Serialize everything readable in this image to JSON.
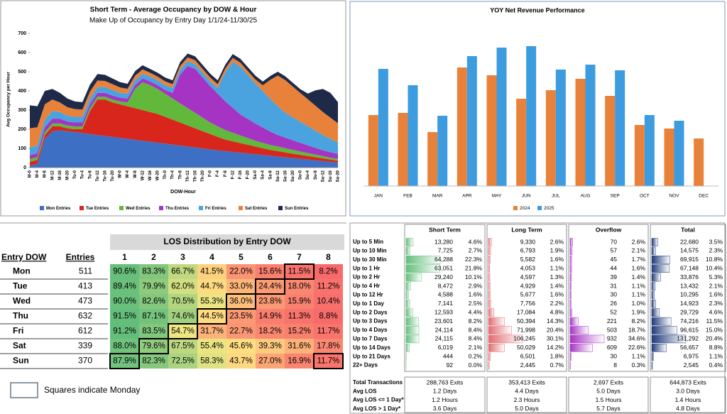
{
  "chart_data": [
    {
      "type": "area",
      "stacked": true,
      "title": "Short Term - Average Occupancy by DOW & Hour",
      "subtitle": "Make Up of Occupancy by Entry Day 1/1/24-11/30/25",
      "y_label": "Avg Occupancy per Hour",
      "x_label": "DOW-Hour",
      "categories": [
        "M-0",
        "M-4",
        "M-8",
        "M-12",
        "M-16",
        "M-20",
        "Tu-0",
        "Tu-4",
        "Tu-8",
        "Tu-12",
        "Tu-16",
        "Tu-20",
        "W-0",
        "W-4",
        "W-8",
        "W-12",
        "W-16",
        "W-20",
        "Th-0",
        "Th-4",
        "Th-8",
        "Th-12",
        "Th-16",
        "Th-20",
        "F-0",
        "F-4",
        "F-8",
        "F-12",
        "F-16",
        "F-20",
        "Sa-0",
        "Sa-4",
        "Sa-8",
        "Sa-12",
        "Sa-16",
        "Sa-20",
        "Su-0",
        "Su-4",
        "Su-8",
        "Su-12",
        "Su-16",
        "Su-20"
      ],
      "series": [
        {
          "name": "Mon Entries",
          "color": "#3d6fc4",
          "values": [
            10,
            20,
            150,
            190,
            195,
            190,
            185,
            180,
            175,
            170,
            165,
            160,
            155,
            150,
            145,
            140,
            135,
            130,
            125,
            120,
            115,
            110,
            105,
            100,
            95,
            90,
            86,
            82,
            78,
            74,
            70,
            66,
            62,
            58,
            54,
            50,
            46,
            42,
            38,
            34,
            30,
            26
          ]
        },
        {
          "name": "Tue Entries",
          "color": "#d9261c",
          "values": [
            20,
            20,
            20,
            25,
            20,
            15,
            15,
            20,
            120,
            185,
            190,
            180,
            175,
            170,
            165,
            160,
            155,
            150,
            140,
            130,
            120,
            110,
            100,
            90,
            80,
            70,
            60,
            55,
            50,
            45,
            40,
            35,
            30,
            28,
            25,
            22,
            20,
            18,
            16,
            14,
            12,
            10
          ]
        },
        {
          "name": "Wed Entries",
          "color": "#62b83a",
          "values": [
            15,
            15,
            15,
            15,
            15,
            15,
            15,
            15,
            15,
            15,
            15,
            15,
            15,
            20,
            100,
            145,
            140,
            130,
            120,
            110,
            100,
            90,
            80,
            70,
            60,
            55,
            50,
            45,
            40,
            35,
            30,
            28,
            26,
            24,
            22,
            20,
            18,
            16,
            14,
            12,
            10,
            10
          ]
        },
        {
          "name": "Thu Entries",
          "color": "#a534c4",
          "values": [
            20,
            20,
            25,
            25,
            25,
            20,
            20,
            20,
            20,
            20,
            20,
            20,
            20,
            20,
            20,
            20,
            20,
            20,
            20,
            30,
            150,
            220,
            230,
            210,
            190,
            170,
            150,
            130,
            110,
            100,
            90,
            80,
            70,
            60,
            55,
            50,
            45,
            40,
            35,
            30,
            28,
            25
          ]
        },
        {
          "name": "Fri Entries",
          "color": "#4aa3df",
          "values": [
            40,
            40,
            40,
            40,
            35,
            30,
            30,
            30,
            30,
            30,
            30,
            30,
            25,
            25,
            25,
            25,
            25,
            25,
            25,
            25,
            25,
            25,
            25,
            25,
            25,
            30,
            150,
            240,
            250,
            230,
            210,
            190,
            170,
            150,
            130,
            120,
            110,
            100,
            90,
            80,
            70,
            60
          ]
        },
        {
          "name": "Sat Entries",
          "color": "#e8823a",
          "values": [
            100,
            95,
            80,
            60,
            50,
            45,
            40,
            38,
            36,
            34,
            32,
            30,
            28,
            26,
            24,
            22,
            20,
            20,
            20,
            20,
            20,
            20,
            20,
            20,
            20,
            20,
            20,
            20,
            20,
            20,
            20,
            30,
            100,
            160,
            170,
            160,
            150,
            140,
            130,
            120,
            110,
            100
          ]
        },
        {
          "name": "Sun Entries",
          "color": "#1e2a48",
          "values": [
            120,
            110,
            70,
            55,
            50,
            45,
            40,
            38,
            36,
            34,
            32,
            30,
            28,
            26,
            24,
            22,
            20,
            20,
            20,
            20,
            20,
            20,
            20,
            20,
            20,
            20,
            20,
            20,
            20,
            20,
            20,
            20,
            20,
            20,
            20,
            20,
            20,
            30,
            80,
            120,
            130,
            110
          ]
        }
      ],
      "ylim": [
        0,
        700
      ],
      "yticks": [
        0,
        100,
        200,
        300,
        400,
        500,
        600,
        700
      ],
      "grid": false,
      "legend": "bottom"
    },
    {
      "type": "bar",
      "title": "YOY Net Revenue Performance",
      "categories": [
        "JAN",
        "FEB",
        "MAR",
        "APR",
        "MAY",
        "JUN",
        "JUL",
        "AUG",
        "SEP",
        "OCT",
        "NOV",
        "DEC"
      ],
      "series": [
        {
          "name": "2024",
          "color": "#e8823a",
          "values": [
            100,
            103,
            76,
            167,
            156,
            123,
            135,
            151,
            127,
            86,
            81,
            67
          ]
        },
        {
          "name": "2025",
          "color": "#3d9be0",
          "values": [
            165,
            142,
            99,
            183,
            195,
            197,
            164,
            171,
            163,
            100,
            92,
            null
          ]
        }
      ],
      "ylim": [
        0,
        200
      ],
      "grid": false,
      "legend": "bottom"
    }
  ],
  "los_table": {
    "title": "LOS Distribution by Entry DOW",
    "columns": [
      "Entry DOW",
      "Entries",
      "1",
      "2",
      "3",
      "4",
      "5",
      "6",
      "7",
      "8"
    ],
    "rows": [
      {
        "day": "Mon",
        "entries": "511",
        "cells": [
          "90.6%",
          "83.3%",
          "66.7%",
          "41.5%",
          "22.0%",
          "15.6%",
          "11.5%",
          "8.2%"
        ]
      },
      {
        "day": "Tue",
        "entries": "413",
        "cells": [
          "89.4%",
          "79.9%",
          "62.0%",
          "44.7%",
          "33.0%",
          "24.4%",
          "18.0%",
          "11.2%"
        ]
      },
      {
        "day": "Wed",
        "entries": "473",
        "cells": [
          "90.0%",
          "82.6%",
          "70.5%",
          "55.3%",
          "36.0%",
          "23.8%",
          "15.9%",
          "10.4%"
        ]
      },
      {
        "day": "Thu",
        "entries": "632",
        "cells": [
          "91.5%",
          "87.1%",
          "74.6%",
          "44.5%",
          "23.5%",
          "14.9%",
          "11.3%",
          "8.8%"
        ]
      },
      {
        "day": "Fri",
        "entries": "612",
        "cells": [
          "91.2%",
          "83.5%",
          "54.7%",
          "31.7%",
          "22.7%",
          "18.2%",
          "15.2%",
          "11.7%"
        ]
      },
      {
        "day": "Sat",
        "entries": "339",
        "cells": [
          "88.0%",
          "79.6%",
          "67.5%",
          "55.4%",
          "45.6%",
          "39.3%",
          "31.6%",
          "17.8%"
        ]
      },
      {
        "day": "Sun",
        "entries": "370",
        "cells": [
          "87.9%",
          "82.3%",
          "72.5%",
          "58.3%",
          "43.7%",
          "27.0%",
          "16.9%",
          "11.7%"
        ]
      }
    ],
    "note": "Squares indicate Monday"
  },
  "exit_table": {
    "groups": [
      {
        "name": "Short Term",
        "color": "#63be7b"
      },
      {
        "name": "Long Term",
        "color": "#e06b70"
      },
      {
        "name": "Overflow",
        "color": "#a534c4"
      },
      {
        "name": "Total",
        "color": "#1f3a7a"
      }
    ],
    "rows": [
      {
        "label": "Up to 5 Min",
        "cells": [
          {
            "count": "13,280",
            "pct": "4.6%"
          },
          {
            "count": "9,330",
            "pct": "2.6%"
          },
          {
            "count": "70",
            "pct": "2.6%"
          },
          {
            "count": "22,680",
            "pct": "3.5%"
          }
        ]
      },
      {
        "label": "Up to 10 Min",
        "cells": [
          {
            "count": "7,725",
            "pct": "2.7%"
          },
          {
            "count": "6,793",
            "pct": "1.9%"
          },
          {
            "count": "57",
            "pct": "2.1%"
          },
          {
            "count": "14,575",
            "pct": "2.3%"
          }
        ]
      },
      {
        "label": "Up to 30 Min",
        "cells": [
          {
            "count": "64,288",
            "pct": "22.3%"
          },
          {
            "count": "5,582",
            "pct": "1.6%"
          },
          {
            "count": "45",
            "pct": "1.7%"
          },
          {
            "count": "69,915",
            "pct": "10.8%"
          }
        ]
      },
      {
        "label": "Up to 1 Hr",
        "cells": [
          {
            "count": "63,051",
            "pct": "21.8%"
          },
          {
            "count": "4,053",
            "pct": "1.1%"
          },
          {
            "count": "44",
            "pct": "1.6%"
          },
          {
            "count": "67,148",
            "pct": "10.4%"
          }
        ]
      },
      {
        "label": "Up to 2 Hr",
        "cells": [
          {
            "count": "29,240",
            "pct": "10.1%"
          },
          {
            "count": "4,597",
            "pct": "1.3%"
          },
          {
            "count": "39",
            "pct": "1.4%"
          },
          {
            "count": "33,876",
            "pct": "5.3%"
          }
        ]
      },
      {
        "label": "Up to 4 Hr",
        "cells": [
          {
            "count": "8,472",
            "pct": "2.9%"
          },
          {
            "count": "4,929",
            "pct": "1.4%"
          },
          {
            "count": "31",
            "pct": "1.1%"
          },
          {
            "count": "13,432",
            "pct": "2.1%"
          }
        ]
      },
      {
        "label": "Up to 12 Hr",
        "cells": [
          {
            "count": "4,588",
            "pct": "1.6%"
          },
          {
            "count": "5,677",
            "pct": "1.6%"
          },
          {
            "count": "30",
            "pct": "1.1%"
          },
          {
            "count": "10,295",
            "pct": "1.6%"
          }
        ]
      },
      {
        "label": "Up to 1 Day",
        "cells": [
          {
            "count": "7,141",
            "pct": "2.5%"
          },
          {
            "count": "7,756",
            "pct": "2.2%"
          },
          {
            "count": "26",
            "pct": "1.0%"
          },
          {
            "count": "14,923",
            "pct": "2.3%"
          }
        ]
      },
      {
        "label": "Up to 2 Days",
        "cells": [
          {
            "count": "12,593",
            "pct": "4.4%"
          },
          {
            "count": "17,084",
            "pct": "4.8%"
          },
          {
            "count": "52",
            "pct": "1.9%"
          },
          {
            "count": "29,729",
            "pct": "4.6%"
          }
        ]
      },
      {
        "label": "Up to 3 Days",
        "cells": [
          {
            "count": "23,601",
            "pct": "8.2%"
          },
          {
            "count": "50,394",
            "pct": "14.3%"
          },
          {
            "count": "221",
            "pct": "8.2%"
          },
          {
            "count": "74,216",
            "pct": "11.5%"
          }
        ]
      },
      {
        "label": "Up to 4 Days",
        "cells": [
          {
            "count": "24,114",
            "pct": "8.4%"
          },
          {
            "count": "71,998",
            "pct": "20.4%"
          },
          {
            "count": "503",
            "pct": "18.7%"
          },
          {
            "count": "96,615",
            "pct": "15.0%"
          }
        ]
      },
      {
        "label": "Up to 7 Days",
        "cells": [
          {
            "count": "24,115",
            "pct": "8.4%"
          },
          {
            "count": "106,245",
            "pct": "30.1%"
          },
          {
            "count": "932",
            "pct": "34.6%"
          },
          {
            "count": "131,292",
            "pct": "20.4%"
          }
        ]
      },
      {
        "label": "Up to 14 Days",
        "cells": [
          {
            "count": "6,019",
            "pct": "2.1%"
          },
          {
            "count": "50,029",
            "pct": "14.2%"
          },
          {
            "count": "609",
            "pct": "22.6%"
          },
          {
            "count": "56,657",
            "pct": "8.8%"
          }
        ]
      },
      {
        "label": "Up to 21 Days",
        "cells": [
          {
            "count": "444",
            "pct": "0.2%"
          },
          {
            "count": "6,501",
            "pct": "1.8%"
          },
          {
            "count": "30",
            "pct": "1.1%"
          },
          {
            "count": "6,975",
            "pct": "1.1%"
          }
        ]
      },
      {
        "label": "22+ Days",
        "cells": [
          {
            "count": "92",
            "pct": "0.0%"
          },
          {
            "count": "2,445",
            "pct": "0.7%"
          },
          {
            "count": "8",
            "pct": "0.3%"
          },
          {
            "count": "2,545",
            "pct": "0.4%"
          }
        ]
      }
    ],
    "summary": [
      {
        "label": "Total Transactions",
        "cells": [
          "288,763 Exits",
          "353,413 Exits",
          "2,697 Exits",
          "644,873 Exits"
        ]
      },
      {
        "label": "Avg LOS",
        "cells": [
          "1.2 Days",
          "4.4 Days",
          "5.0 Days",
          "3.0 Days"
        ]
      },
      {
        "label": "Avg LOS <= 1 Day*",
        "cells": [
          "1.2 Hours",
          "2.3 Hours",
          "1.5 Hours",
          "1.4 Hours"
        ]
      },
      {
        "label": "Avg LOS > 1 Day*",
        "cells": [
          "3.6 Days",
          "5.0 Days",
          "5.7 Days",
          "4.8 Days"
        ]
      }
    ]
  }
}
